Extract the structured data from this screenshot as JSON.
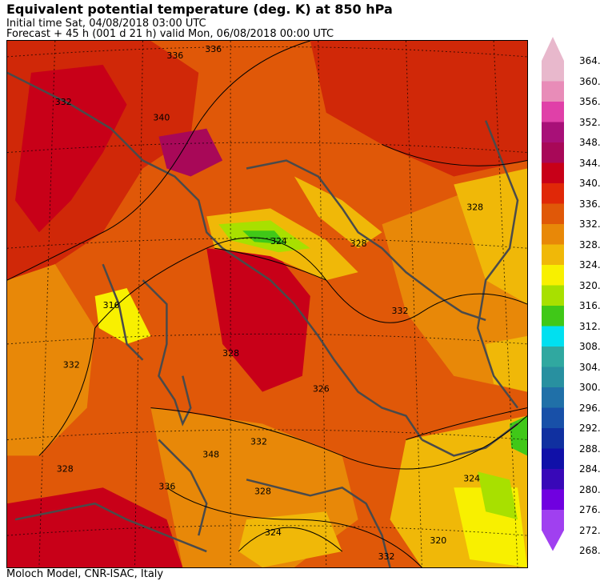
{
  "header": {
    "title": "Equivalent potential temperature (deg. K) at 850 hPa",
    "initial_time": "Initial time  Sat, 04/08/2018  03:00 UTC",
    "forecast": "Forecast  +  45 h  (001 d 21 h)  valid Mon, 06/08/2018 00:00 UTC"
  },
  "footer": {
    "credit": "Moloch Model, CNR-ISAC, Italy"
  },
  "colorbar": {
    "levels": [
      "364.",
      "360.",
      "356.",
      "352.",
      "348.",
      "344.",
      "340.",
      "336.",
      "332.",
      "328.",
      "324.",
      "320.",
      "316.",
      "312.",
      "308.",
      "304.",
      "300.",
      "296.",
      "292.",
      "288.",
      "284.",
      "280.",
      "276.",
      "272.",
      "268."
    ],
    "colors": [
      "#e8b8cc",
      "#e88cb8",
      "#e040a8",
      "#a81078",
      "#a80858",
      "#c80018",
      "#e02808",
      "#e05808",
      "#e88808",
      "#f0b808",
      "#f8f000",
      "#a8e000",
      "#40c818",
      "#00e0f0",
      "#30a8a0",
      "#2890a0",
      "#2070a8",
      "#1850a8",
      "#1030a0",
      "#1010a8",
      "#3808b8",
      "#7000e0",
      "#a040f0"
    ]
  },
  "map": {
    "contour_labels": [
      "336",
      "336",
      "340",
      "332",
      "328",
      "328",
      "332",
      "316",
      "324",
      "328",
      "332",
      "326",
      "332",
      "348",
      "336",
      "324",
      "324",
      "332",
      "328",
      "320",
      "328"
    ]
  }
}
